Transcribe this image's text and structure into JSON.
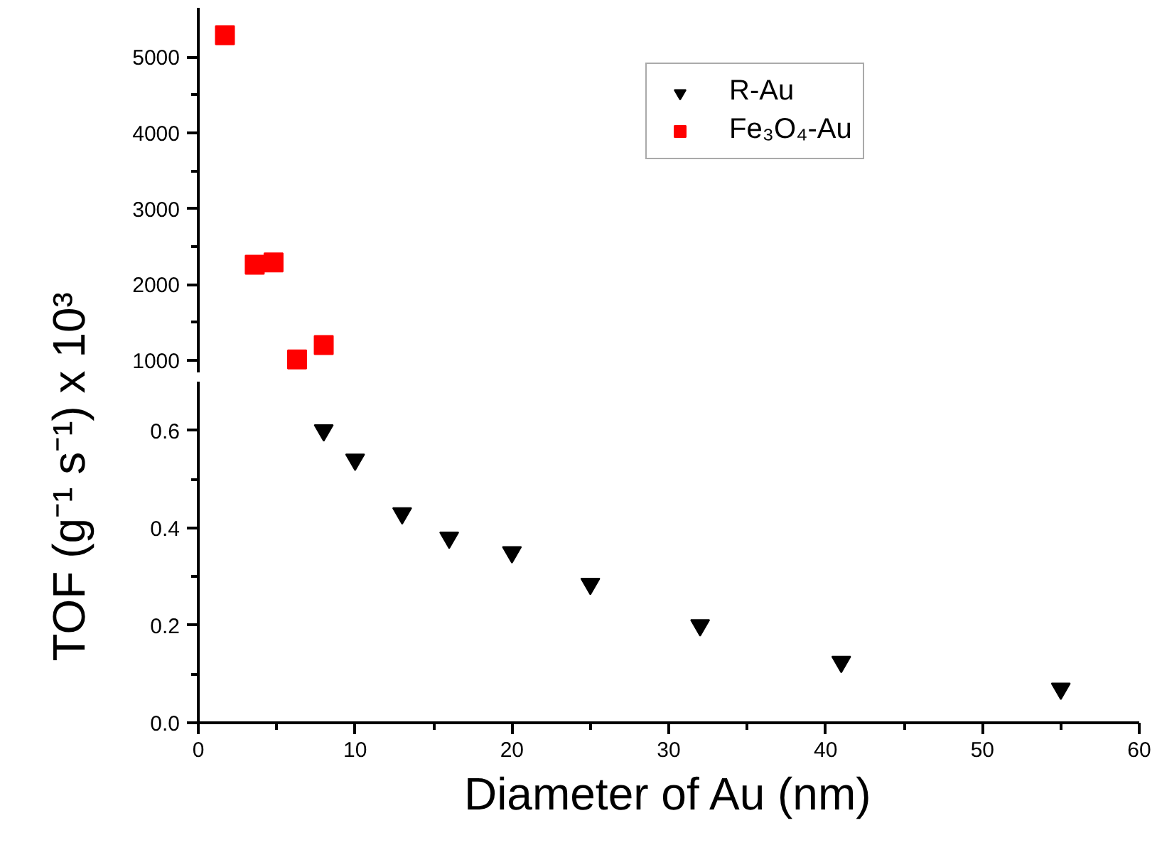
{
  "chart_data": [
    {
      "type": "scatter",
      "xlim": [
        0,
        60
      ],
      "ylim": [
        830,
        5650
      ],
      "yticks": [
        1000,
        2000,
        3000,
        4000,
        5000
      ],
      "tick_labels": "y",
      "legend": "top right",
      "grid": false,
      "series": [
        {
          "name": "Fe₃O₄-Au",
          "color": "#ff0000",
          "marker": "square",
          "x": [
            1.7,
            3.6,
            4.8,
            6.3,
            8.0
          ],
          "values": [
            5290,
            2260,
            2290,
            1010,
            1200
          ]
        }
      ]
    },
    {
      "type": "scatter",
      "xlim": [
        0,
        60
      ],
      "ylim": [
        0,
        0.7
      ],
      "xlabel": "Diameter of Au (nm)",
      "ylabel": "TOF (g⁻¹ s⁻¹) x 10³",
      "grid": false,
      "xticks": [
        0,
        10,
        20,
        30,
        40,
        50,
        60
      ],
      "yticks": [
        {
          "value": 0,
          "label": "0.0"
        },
        {
          "value": 0.2,
          "label": "0.2"
        },
        {
          "value": 0.4,
          "label": "0.4"
        },
        {
          "value": 0.6,
          "label": "0.6"
        }
      ],
      "series": [
        {
          "name": "R-Au",
          "color": "#000000",
          "marker": "triangle",
          "x": [
            8,
            10,
            13,
            16,
            20,
            25,
            32,
            41,
            55
          ],
          "values": [
            0.6,
            0.54,
            0.43,
            0.38,
            0.35,
            0.285,
            0.2,
            0.125,
            0.07
          ]
        }
      ]
    }
  ]
}
